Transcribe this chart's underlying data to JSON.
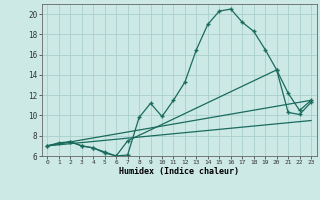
{
  "xlabel": "Humidex (Indice chaleur)",
  "background_color": "#cce9e5",
  "grid_color": "#aacfcc",
  "line_color": "#1a6b5e",
  "xlim": [
    -0.5,
    23.5
  ],
  "ylim": [
    6,
    21
  ],
  "xticks": [
    0,
    1,
    2,
    3,
    4,
    5,
    6,
    7,
    8,
    9,
    10,
    11,
    12,
    13,
    14,
    15,
    16,
    17,
    18,
    19,
    20,
    21,
    22,
    23
  ],
  "yticks": [
    6,
    8,
    10,
    12,
    14,
    16,
    18,
    20
  ],
  "line1_x": [
    0,
    1,
    2,
    3,
    4,
    5,
    6,
    7,
    8,
    9,
    10,
    11,
    12,
    13,
    14,
    15,
    16,
    17,
    18,
    19,
    20,
    21,
    22,
    23
  ],
  "line1_y": [
    7.0,
    7.3,
    7.4,
    7.0,
    6.8,
    6.3,
    6.0,
    6.1,
    9.8,
    11.2,
    9.9,
    11.5,
    13.3,
    16.5,
    19.0,
    20.3,
    20.5,
    19.2,
    18.3,
    16.5,
    14.5,
    10.3,
    10.1,
    11.3
  ],
  "line2_x": [
    0,
    2,
    3,
    4,
    5,
    6,
    7,
    20,
    21,
    22,
    23
  ],
  "line2_y": [
    7.0,
    7.4,
    7.0,
    6.8,
    6.4,
    6.0,
    7.5,
    14.5,
    12.2,
    10.5,
    11.5
  ],
  "line3_x": [
    0,
    23
  ],
  "line3_y": [
    7.0,
    11.5
  ],
  "line4_x": [
    0,
    23
  ],
  "line4_y": [
    7.0,
    9.5
  ]
}
